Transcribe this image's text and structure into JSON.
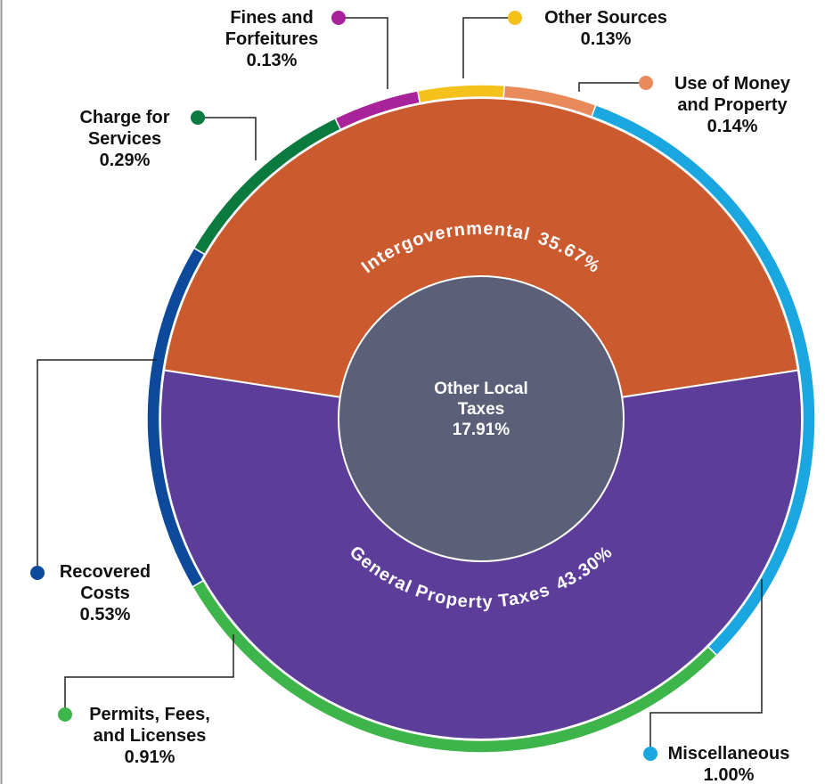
{
  "chart_data": {
    "type": "sunburst",
    "center": {
      "name": "Other Local Taxes",
      "value": 17.91,
      "value_label": "17.91%",
      "color": "#5b6078"
    },
    "inner": {
      "categories": [
        "Intergovernmental",
        "General Property Taxes"
      ],
      "values": [
        35.67,
        43.3
      ],
      "value_labels": [
        "35.67%",
        "43.30%"
      ],
      "colors": [
        "#cc5a2f",
        "#5c3d99"
      ]
    },
    "outer": {
      "categories": [
        "Use of Money and Property",
        "Miscellaneous",
        "Permits, Fees, and Licenses",
        "Recovered Costs",
        "Charge for Services",
        "Fines and Forfeitures",
        "Other Sources"
      ],
      "values": [
        0.14,
        1.0,
        0.91,
        0.53,
        0.29,
        0.13,
        0.13
      ],
      "value_labels": [
        "0.14%",
        "1.00%",
        "0.91%",
        "0.53%",
        "0.29%",
        "0.13%",
        "0.13%"
      ],
      "colors": [
        "#e98a5a",
        "#1aa7e0",
        "#3db54a",
        "#0d4a9c",
        "#0a7a3e",
        "#a8229a",
        "#f5c21b"
      ]
    }
  }
}
